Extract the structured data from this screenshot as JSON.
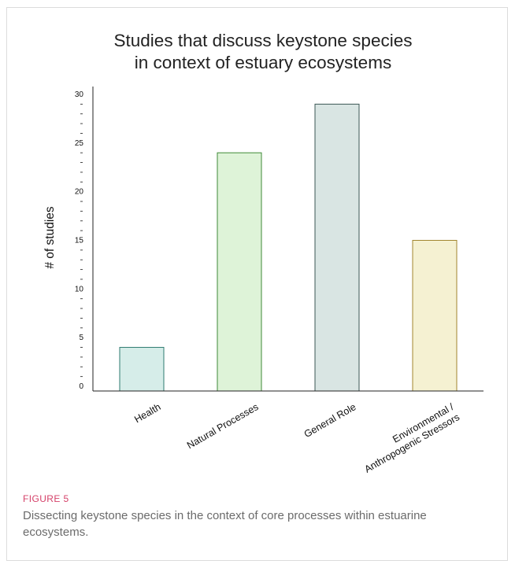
{
  "figure": {
    "label": "FIGURE 5",
    "caption": "Dissecting keystone species in the context of core processes within estuarine ecosystems."
  },
  "chart_data": {
    "type": "bar",
    "title_lines": [
      "Studies that discuss keystone species",
      "in context of estuary ecosystems"
    ],
    "ylabel": "# of studies",
    "xlabel": "",
    "ylim": [
      0,
      30
    ],
    "yticks": [
      0,
      5,
      10,
      15,
      20,
      25,
      30
    ],
    "categories": [
      {
        "lines": [
          "Health"
        ]
      },
      {
        "lines": [
          "Natural Processes"
        ]
      },
      {
        "lines": [
          "General Role"
        ]
      },
      {
        "lines": [
          "Environmental /",
          "Anthropogenic Stressors"
        ]
      }
    ],
    "values": [
      4,
      24,
      29,
      15
    ],
    "colors": [
      {
        "fill": "#d6ede9",
        "stroke": "#2e7b70"
      },
      {
        "fill": "#def3d8",
        "stroke": "#3f8a37"
      },
      {
        "fill": "#d9e5e3",
        "stroke": "#3b5754"
      },
      {
        "fill": "#f5f1d2",
        "stroke": "#a1852f"
      }
    ],
    "grid": false,
    "legend": "none"
  }
}
